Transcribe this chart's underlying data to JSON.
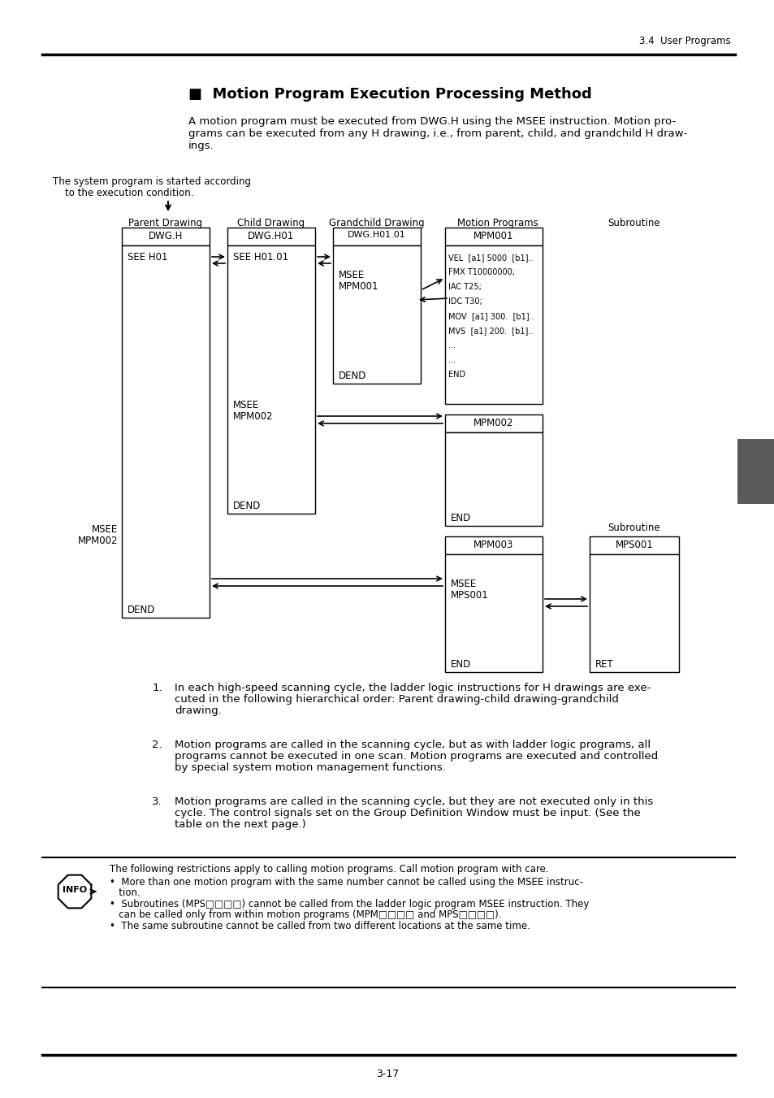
{
  "page_header": "3.4  User Programs",
  "title": "■  Motion Program Execution Processing Method",
  "intro_line1": "A motion program must be executed from DWG.H using the MSEE instruction. Motion pro-",
  "intro_line2": "grams can be executed from any H drawing, i.e., from parent, child, and grandchild H draw-",
  "intro_line3": "ings.",
  "sys_note1": "The system program is started according",
  "sys_note2": "    to the execution condition.",
  "col_parent": "Parent Drawing",
  "col_child": "Child Drawing",
  "col_gc": "Grandchild Drawing",
  "col_motion": "Motion Programs",
  "col_sub": "Subroutine",
  "mpm1_lines": [
    "VEL  [a1] 5000  [b1]..",
    "FMX T10000000;",
    "IAC T25;",
    "IDC T30;",
    "MOV  [a1] 300.  [b1]..",
    "MVS  [a1] 200.  [b1]..",
    "...",
    "...",
    "END"
  ],
  "b1_line1": "In each high-speed scanning cycle, the ladder logic instructions for H drawings are exe-",
  "b1_line2": "cuted in the following hierarchical order: Parent drawing-child drawing-grandchild",
  "b1_line3": "drawing.",
  "b2_line1": "Motion programs are called in the scanning cycle, but as with ladder logic programs, all",
  "b2_line2": "programs cannot be executed in one scan. Motion programs are executed and controlled",
  "b2_line3": "by special system motion management functions.",
  "b3_line1": "Motion programs are called in the scanning cycle, but they are not executed only in this",
  "b3_line2": "cycle. The control signals set on the Group Definition Window must be input. (See the",
  "b3_line3": "table on the next page.)",
  "info1": "The following restrictions apply to calling motion programs. Call motion program with care.",
  "info2": "•  More than one motion program with the same number cannot be called using the MSEE instruc-",
  "info3": "   tion.",
  "info4": "•  Subroutines (MPS□□□□) cannot be called from the ladder logic program MSEE instruction. They",
  "info5": "   can be called only from within motion programs (MPM□□□□ and MPS□□□□).",
  "info6": "•  The same subroutine cannot be called from two different locations at the same time.",
  "page_number": "3-17"
}
